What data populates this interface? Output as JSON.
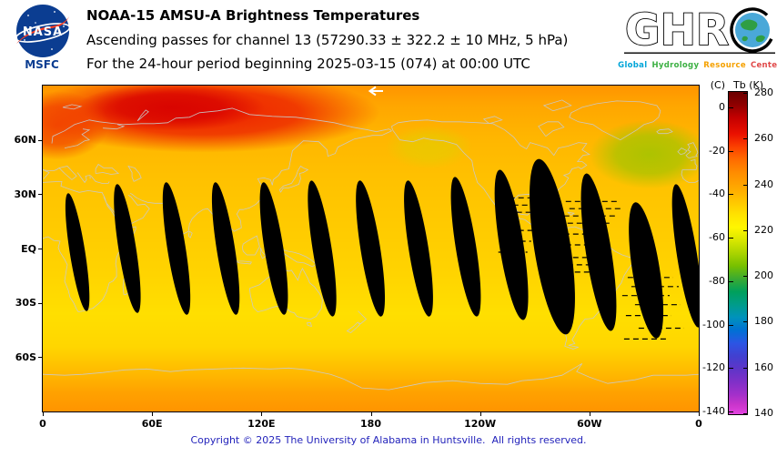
{
  "header": {
    "nasa": {
      "wordmark": "NASA",
      "center_label": "MSFC"
    },
    "title_line1": "NOAA-15 AMSU-A Brightness Temperatures",
    "title_line2": "Ascending passes for channel 13 (57290.33 ± 322.2 ± 10 MHz, 5 hPa)",
    "title_line3": "For the 24-hour period beginning 2025-03-15 (074) at 00:00 UTC",
    "ghrc": {
      "letters": "GHR",
      "words": [
        {
          "text": "Global",
          "color": "#00a5d8"
        },
        {
          "text": "Hydrology",
          "color": "#3cb043"
        },
        {
          "text": "Resource",
          "color": "#f5a100"
        },
        {
          "text": "Center",
          "color": "#e04848"
        }
      ]
    }
  },
  "footer": {
    "copyright": "Copyright © 2025 The University of Alabama in Huntsville.  All rights reserved."
  },
  "chart_data": {
    "type": "heatmap",
    "title": "NOAA-15 AMSU-A Brightness Temperatures, ascending passes, channel 13 (5 hPa)",
    "projection": "equirectangular, longitude 0E eastward to 360E, latitude 90N to 90S",
    "lon_range_deg": [
      0,
      360
    ],
    "lat_range_deg": [
      -90,
      90
    ],
    "x_ticks": [
      {
        "label": "0",
        "lon": 0
      },
      {
        "label": "60E",
        "lon": 60
      },
      {
        "label": "120E",
        "lon": 120
      },
      {
        "label": "180",
        "lon": 180
      },
      {
        "label": "120W",
        "lon": 240
      },
      {
        "label": "60W",
        "lon": 300
      },
      {
        "label": "0",
        "lon": 360
      }
    ],
    "y_ticks": [
      {
        "label": "60N",
        "lat": 60
      },
      {
        "label": "30N",
        "lat": 30
      },
      {
        "label": "EQ",
        "lat": 0
      },
      {
        "label": "30S",
        "lat": -30
      },
      {
        "label": "60S",
        "lat": -60
      }
    ],
    "colorbar": {
      "unit_left": "(C)",
      "unit_right": "Tb (K)",
      "scale_top_k": 280,
      "scale_bottom_k": 140,
      "celsius_ticks": [
        "0",
        "-20",
        "-40",
        "-60",
        "-80",
        "-100",
        "-120",
        "-140"
      ],
      "kelvin_ticks": [
        "280",
        "260",
        "240",
        "220",
        "200",
        "180",
        "160",
        "140"
      ],
      "stops": [
        [
          0,
          "#6b0000"
        ],
        [
          0.04,
          "#8f0000"
        ],
        [
          0.08,
          "#c40000"
        ],
        [
          0.13,
          "#ea1000"
        ],
        [
          0.17,
          "#fb4000"
        ],
        [
          0.21,
          "#ff6c00"
        ],
        [
          0.25,
          "#ff8c00"
        ],
        [
          0.3,
          "#ffaa00"
        ],
        [
          0.34,
          "#ffc600"
        ],
        [
          0.38,
          "#ffe200"
        ],
        [
          0.42,
          "#fff600"
        ],
        [
          0.46,
          "#d9e700"
        ],
        [
          0.5,
          "#abd400"
        ],
        [
          0.54,
          "#77c000"
        ],
        [
          0.58,
          "#3aaa32"
        ],
        [
          0.62,
          "#00a05c"
        ],
        [
          0.66,
          "#009c8a"
        ],
        [
          0.7,
          "#0092bc"
        ],
        [
          0.74,
          "#0070d4"
        ],
        [
          0.78,
          "#2c55e4"
        ],
        [
          0.82,
          "#4240d0"
        ],
        [
          0.86,
          "#5f35c8"
        ],
        [
          0.9,
          "#8030c8"
        ],
        [
          0.94,
          "#a430ca"
        ],
        [
          0.97,
          "#c935cb"
        ],
        [
          1,
          "#e342e0"
        ]
      ]
    },
    "field": {
      "base_stops": [
        [
          0,
          "#ff9400"
        ],
        [
          0.06,
          "#ffa600"
        ],
        [
          0.16,
          "#ffb600"
        ],
        [
          0.3,
          "#ffc200"
        ],
        [
          0.46,
          "#ffcc00"
        ],
        [
          0.58,
          "#ffd400"
        ],
        [
          0.7,
          "#ffdf00"
        ],
        [
          0.8,
          "#ffd600"
        ],
        [
          0.88,
          "#ffba00"
        ],
        [
          0.94,
          "#ffa200"
        ],
        [
          1,
          "#ff9400"
        ]
      ],
      "warm_features": [
        {
          "lon": 88,
          "lat": 75,
          "rlon": 97,
          "rlat": 22,
          "color": "#ec1800",
          "opacity": 0.95,
          "tb_k": 268
        },
        {
          "lon": 70,
          "lat": 78,
          "rlon": 52,
          "rlat": 13,
          "color": "#d60000",
          "opacity": 0.9,
          "tb_k": 272
        },
        {
          "lon": 8,
          "lat": 68,
          "rlon": 28,
          "rlat": 19,
          "color": "#f03800",
          "opacity": 0.85,
          "tb_k": 264
        }
      ],
      "cool_features": [
        {
          "lon": 333,
          "lat": 52,
          "rlon": 33,
          "rlat": 19,
          "color": "#a4c400",
          "opacity": 0.9,
          "tb_k": 212
        },
        {
          "lon": 212,
          "lat": 56,
          "rlon": 24,
          "rlat": 12,
          "color": "#ddd200",
          "opacity": 0.55,
          "tb_k": 226
        }
      ],
      "gap_color": "#000000",
      "tilt_deg": -9,
      "swath_gaps": [
        {
          "lon": 19,
          "lat": -2,
          "rlat": 33,
          "rlon": 4.2
        },
        {
          "lon": 46.4,
          "lat": 0,
          "rlat": 36,
          "rlon": 4.8
        },
        {
          "lon": 73.4,
          "lat": 0,
          "rlat": 37,
          "rlon": 5
        },
        {
          "lon": 100.4,
          "lat": 0,
          "rlat": 37,
          "rlon": 5
        },
        {
          "lon": 126.8,
          "lat": 0,
          "rlat": 37,
          "rlon": 5.2
        },
        {
          "lon": 153.3,
          "lat": 0,
          "rlat": 38,
          "rlon": 5.2
        },
        {
          "lon": 179.8,
          "lat": 0,
          "rlat": 38,
          "rlon": 5.4
        },
        {
          "lon": 206.2,
          "lat": 0,
          "rlat": 38,
          "rlon": 5.4
        },
        {
          "lon": 232.2,
          "lat": 1,
          "rlat": 39,
          "rlon": 5.6
        },
        {
          "lon": 257.2,
          "lat": 2,
          "rlat": 42,
          "rlon": 6.6
        },
        {
          "lon": 279.6,
          "lat": 1,
          "rlat": 49,
          "rlon": 10
        },
        {
          "lon": 305.1,
          "lat": -2,
          "rlat": 44,
          "rlon": 7
        },
        {
          "lon": 331.1,
          "lat": -12,
          "rlat": 38,
          "rlon": 7.5
        },
        {
          "lon": 353.6,
          "lat": -4,
          "rlat": 40,
          "rlon": 5.5
        }
      ],
      "dropout_lines": [
        [
          251,
          270,
          28
        ],
        [
          253,
          272,
          24
        ],
        [
          250,
          268,
          20
        ],
        [
          287,
          316,
          26
        ],
        [
          289,
          318,
          22
        ],
        [
          286,
          314,
          18
        ],
        [
          288,
          312,
          14
        ],
        [
          251,
          269,
          10
        ],
        [
          286,
          310,
          8
        ],
        [
          252,
          268,
          4
        ],
        [
          287,
          309,
          2
        ],
        [
          250,
          266,
          -2
        ],
        [
          286,
          308,
          -5
        ],
        [
          288,
          310,
          -9
        ],
        [
          287,
          306,
          -13
        ],
        [
          321,
          346,
          -16
        ],
        [
          323,
          349,
          -21
        ],
        [
          318,
          344,
          -26
        ],
        [
          325,
          350,
          -31
        ],
        [
          320,
          345,
          -37
        ],
        [
          327,
          352,
          -44
        ],
        [
          319,
          342,
          -50
        ]
      ]
    }
  }
}
